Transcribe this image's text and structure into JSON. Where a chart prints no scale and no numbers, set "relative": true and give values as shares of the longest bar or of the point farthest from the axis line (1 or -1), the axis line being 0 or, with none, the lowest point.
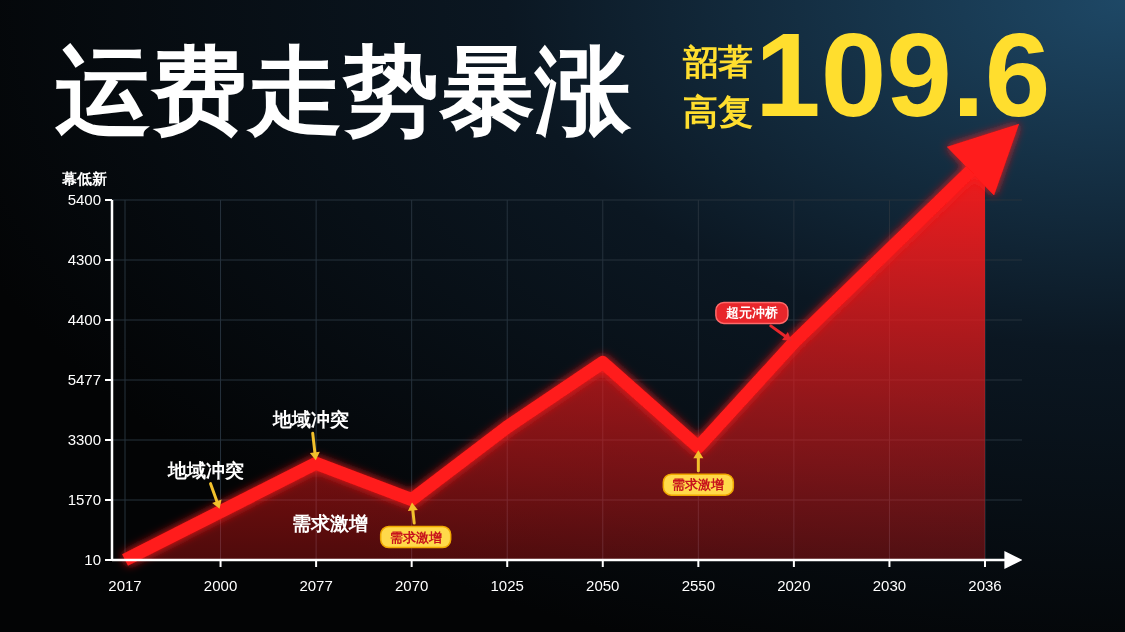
{
  "chart_data": {
    "type": "area",
    "relative": true,
    "title": "运费走势暴涨",
    "subtitle": "韶著高复",
    "ylabel": "幕低新",
    "categories": [
      "2017",
      "2000",
      "2077",
      "2070",
      "1025",
      "2050",
      "2550",
      "2020",
      "2030",
      "2036"
    ],
    "values": [
      0,
      0.12,
      0.24,
      0.15,
      0.33,
      0.49,
      0.28,
      0.54,
      0.77,
      1
    ],
    "color": "#ff1a1a",
    "grid": true,
    "annotations": [
      "109.6",
      "5400",
      "4300",
      "4400",
      "5477",
      "3300",
      "1570",
      "10",
      "需求激增",
      {
        "text": "地域冲突",
        "x": "2000",
        "y": 0.12
      },
      {
        "text": "地域冲突",
        "x": "2077",
        "y": 0.24
      },
      {
        "text": "需求激增",
        "x": "2070",
        "y": 0.15
      },
      {
        "text": "需求激增",
        "x": "2550",
        "y": 0.28
      },
      {
        "text": "超元冲桥",
        "x": "2020",
        "y": 0.54
      }
    ]
  }
}
